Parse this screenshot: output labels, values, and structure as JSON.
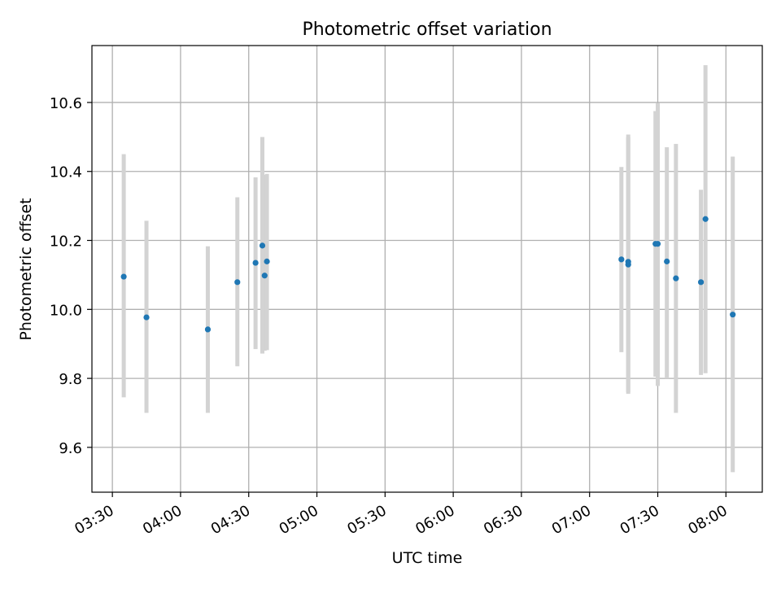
{
  "chart_data": {
    "type": "scatter",
    "title": "Photometric offset variation",
    "xlabel": "UTC time",
    "ylabel": "Photometric offset",
    "x_ticks": [
      "03:30",
      "04:00",
      "04:30",
      "05:00",
      "05:30",
      "06:00",
      "06:30",
      "07:00",
      "07:30",
      "08:00"
    ],
    "y_ticks": [
      "9.6",
      "9.8",
      "10.0",
      "10.2",
      "10.4",
      "10.6"
    ],
    "xlim": [
      "03:21",
      "08:16"
    ],
    "ylim": [
      9.47,
      10.765
    ],
    "grid": true,
    "colors": {
      "point": "#1f77b4",
      "error_bar": "#d3d3d3",
      "grid": "#b0b0b0"
    },
    "points": [
      {
        "x": "03:35",
        "y": 10.095,
        "ylow": 9.745,
        "yhigh": 10.45
      },
      {
        "x": "03:45",
        "y": 9.977,
        "ylow": 9.7,
        "yhigh": 10.257
      },
      {
        "x": "04:12",
        "y": 9.942,
        "ylow": 9.7,
        "yhigh": 10.183
      },
      {
        "x": "04:25",
        "y": 10.079,
        "ylow": 9.835,
        "yhigh": 10.325
      },
      {
        "x": "04:33",
        "y": 10.135,
        "ylow": 9.885,
        "yhigh": 10.383
      },
      {
        "x": "04:36",
        "y": 10.185,
        "ylow": 9.872,
        "yhigh": 10.5
      },
      {
        "x": "04:37",
        "y": 10.098,
        "ylow": 9.88,
        "yhigh": 10.39
      },
      {
        "x": "04:38",
        "y": 10.139,
        "ylow": 9.882,
        "yhigh": 10.393
      },
      {
        "x": "07:14",
        "y": 10.145,
        "ylow": 9.876,
        "yhigh": 10.413
      },
      {
        "x": "07:17",
        "y": 10.138,
        "ylow": 9.755,
        "yhigh": 10.507
      },
      {
        "x": "07:17",
        "y": 10.13,
        "ylow": 9.76,
        "yhigh": 10.5
      },
      {
        "x": "07:29",
        "y": 10.19,
        "ylow": 9.805,
        "yhigh": 10.575
      },
      {
        "x": "07:30",
        "y": 10.19,
        "ylow": 9.778,
        "yhigh": 10.598
      },
      {
        "x": "07:34",
        "y": 10.139,
        "ylow": 9.8,
        "yhigh": 10.47
      },
      {
        "x": "07:38",
        "y": 10.09,
        "ylow": 9.7,
        "yhigh": 10.48
      },
      {
        "x": "07:49",
        "y": 10.079,
        "ylow": 9.81,
        "yhigh": 10.347
      },
      {
        "x": "07:51",
        "y": 10.262,
        "ylow": 9.815,
        "yhigh": 10.708
      },
      {
        "x": "08:03",
        "y": 9.985,
        "ylow": 9.528,
        "yhigh": 10.443
      }
    ]
  }
}
